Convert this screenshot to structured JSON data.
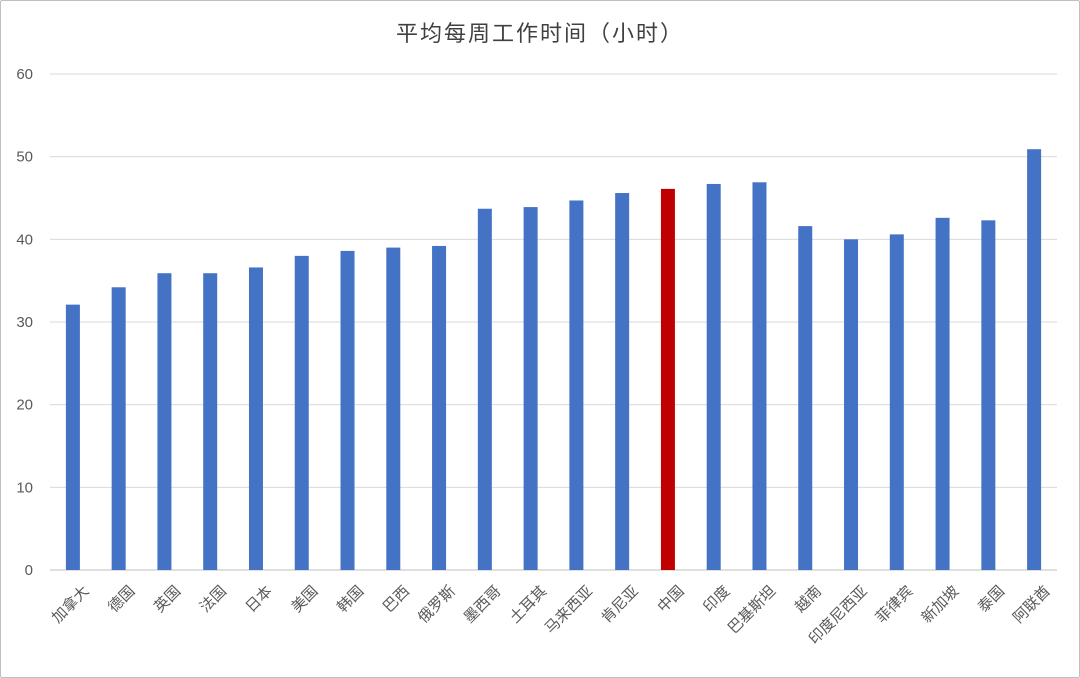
{
  "chart_data": {
    "type": "bar",
    "title": "平均每周工作时间（小时）",
    "xlabel": "",
    "ylabel": "",
    "ylim": [
      0,
      60
    ],
    "yticks": [
      0,
      10,
      20,
      30,
      40,
      50,
      60
    ],
    "grid": true,
    "legend": "none",
    "categories": [
      "加拿大",
      "德国",
      "英国",
      "法国",
      "日本",
      "美国",
      "韩国",
      "巴西",
      "俄罗斯",
      "墨西哥",
      "土耳其",
      "马来西亚",
      "肯尼亚",
      "中国",
      "印度",
      "巴基斯坦",
      "越南",
      "印度尼西亚",
      "菲律宾",
      "新加坡",
      "泰国",
      "阿联酋"
    ],
    "values": [
      32.1,
      34.2,
      35.9,
      35.9,
      36.6,
      38.0,
      38.6,
      39.0,
      39.2,
      43.7,
      43.9,
      44.7,
      45.6,
      46.1,
      46.7,
      46.9,
      41.6,
      40.0,
      40.6,
      42.6,
      42.3,
      50.9
    ],
    "bar_color": "#4472c4",
    "highlight_color": "#c00000",
    "highlight_category": "中国"
  }
}
